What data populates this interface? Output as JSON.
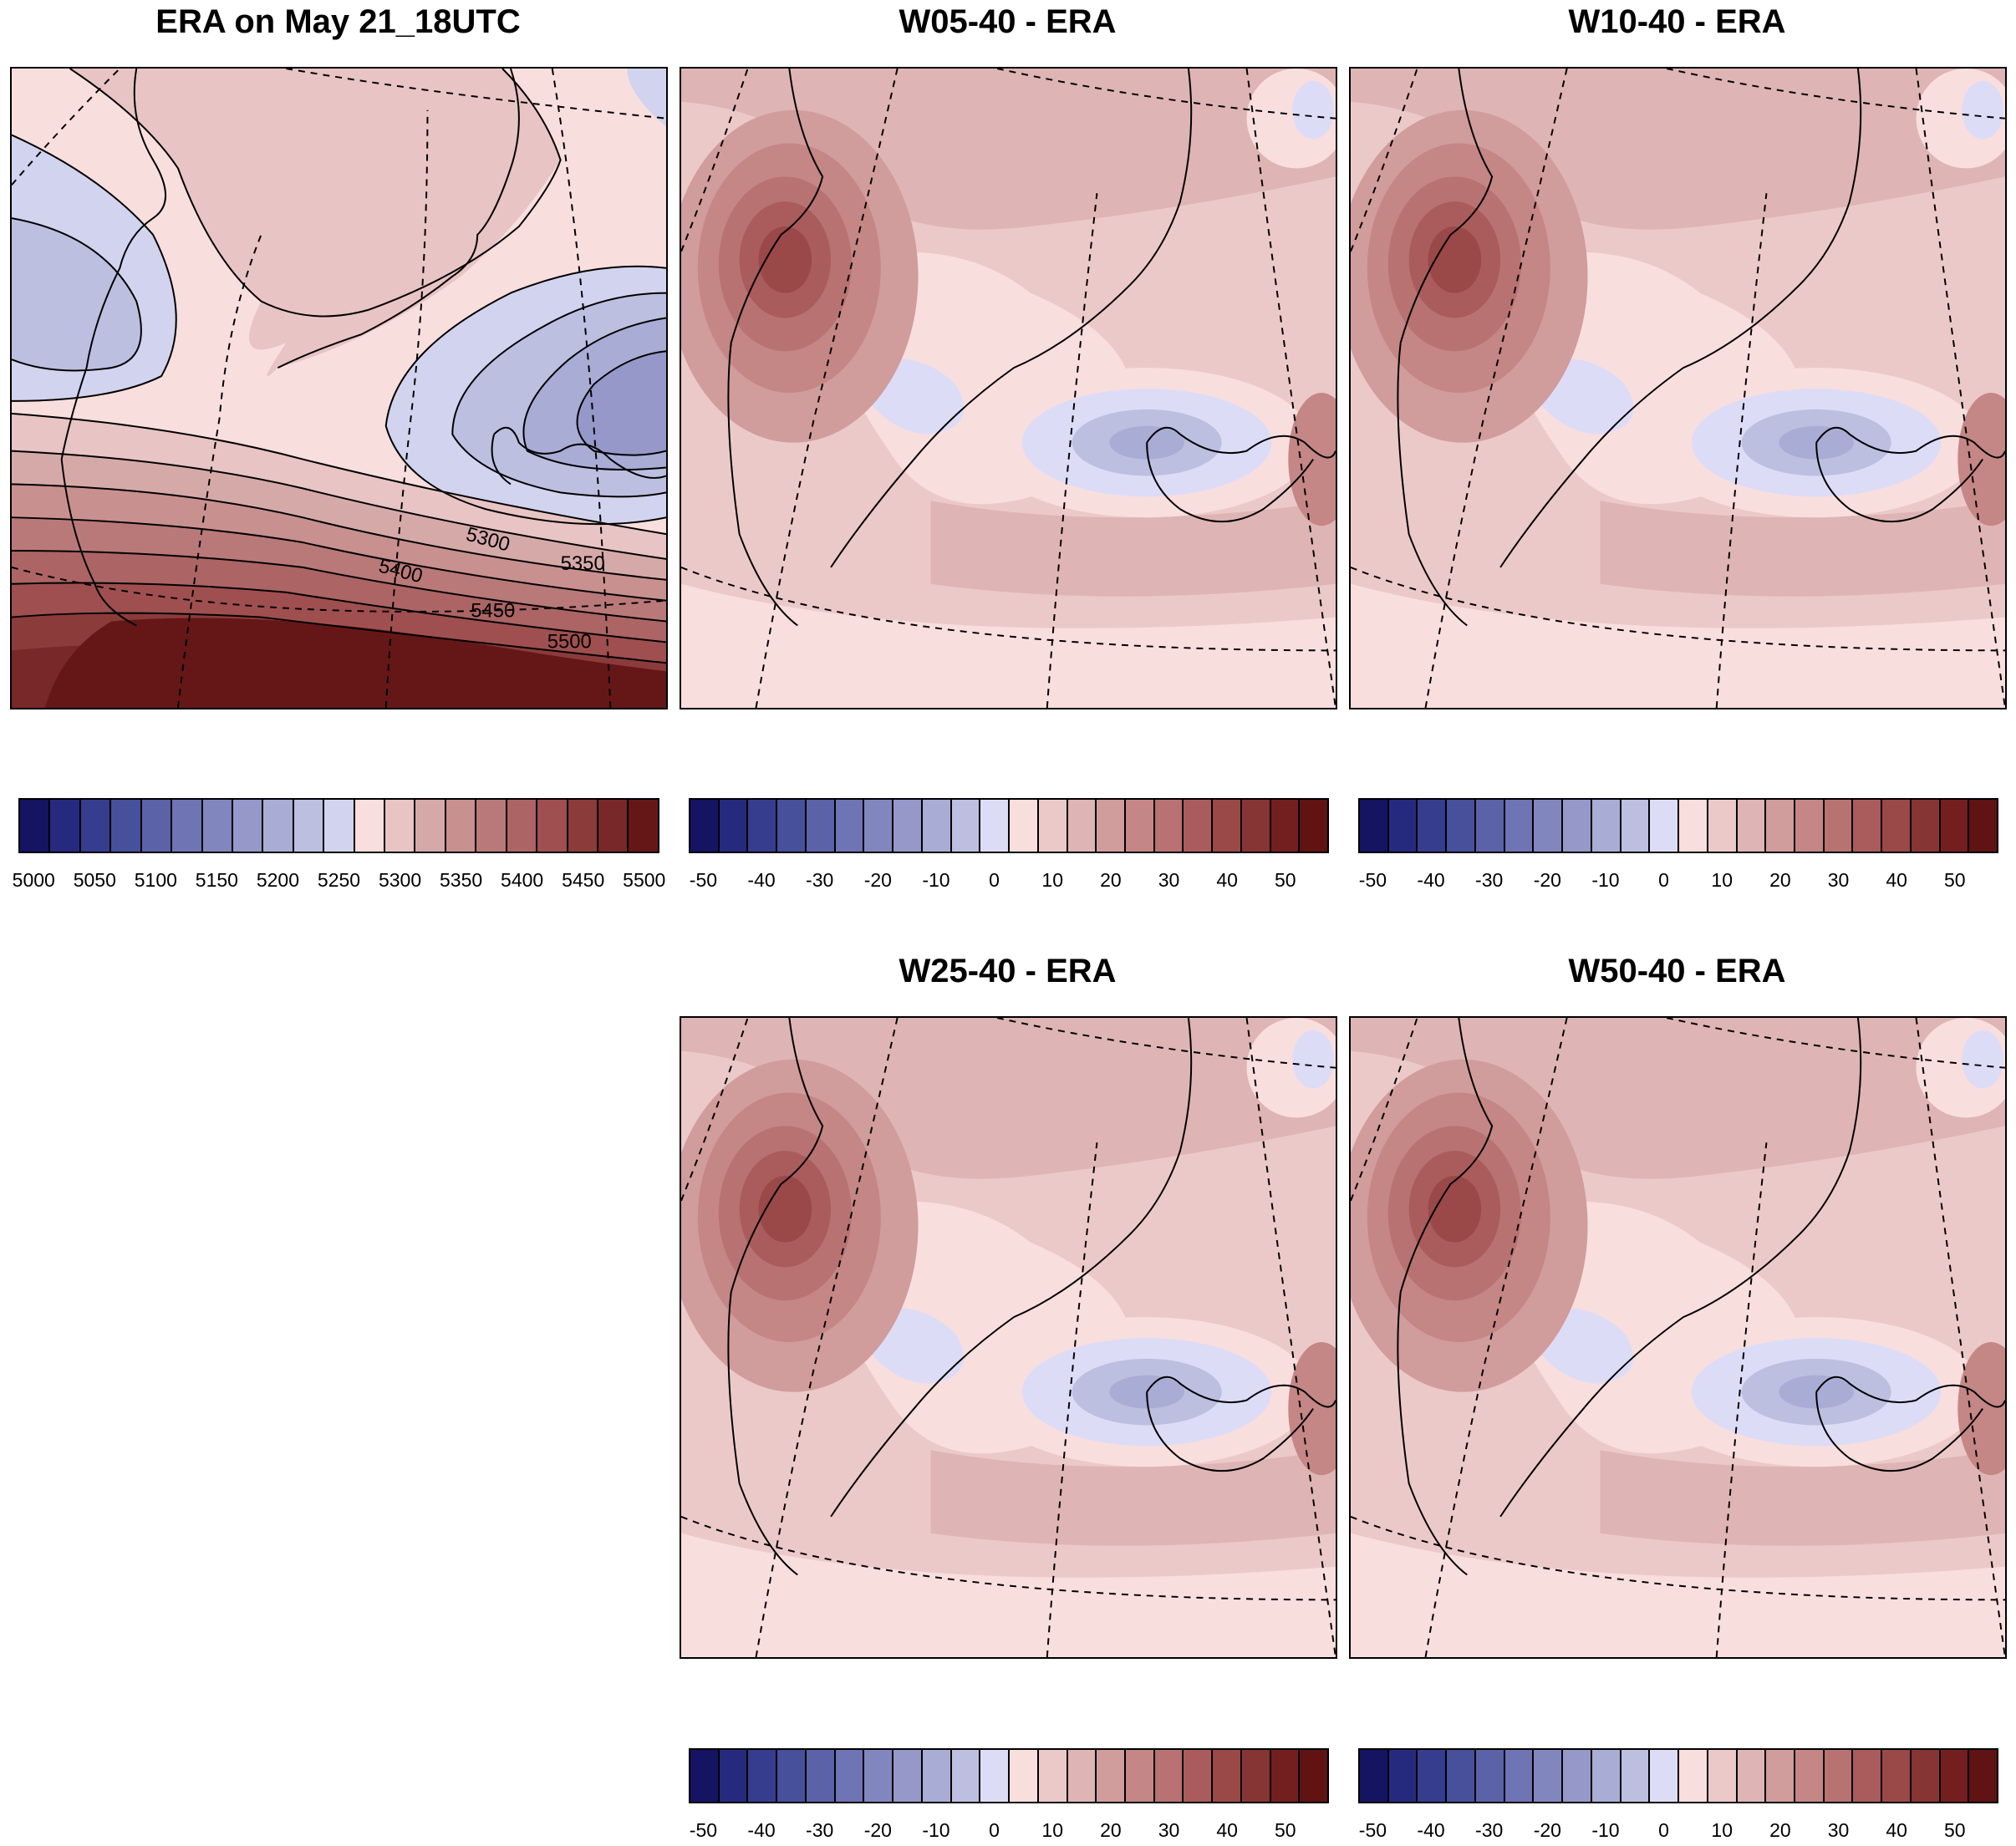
{
  "panels": [
    {
      "id": "era",
      "title": "ERA on May 21_18UTC",
      "field": "absolute"
    },
    {
      "id": "w05",
      "title": "W05-40 - ERA",
      "field": "diff"
    },
    {
      "id": "w10",
      "title": "W10-40 - ERA",
      "field": "diff"
    },
    {
      "id": "w25",
      "title": "W25-40 - ERA",
      "field": "diff"
    },
    {
      "id": "w50",
      "title": "W50-40 - ERA",
      "field": "diff"
    }
  ],
  "contour_labels": [
    "5300",
    "5350",
    "5400",
    "5450",
    "5500"
  ],
  "colorbars": {
    "absolute": {
      "colors": [
        "#141463",
        "#262a7f",
        "#363d8e",
        "#47509a",
        "#5b62a8",
        "#6f74b5",
        "#8286bf",
        "#9598c9",
        "#a9acd4",
        "#bcbfdf",
        "#d2d3ee",
        "#f9dede",
        "#e8c4c4",
        "#d6a9a9",
        "#c99090",
        "#ba7979",
        "#ac6464",
        "#9f4f4f",
        "#8c3b3b",
        "#782828",
        "#651717"
      ],
      "tick_labels": [
        "5000",
        "5050",
        "5100",
        "5150",
        "5200",
        "5250",
        "5300",
        "5350",
        "5400",
        "5450",
        "5500"
      ]
    },
    "diff": {
      "colors": [
        "#141463",
        "#262a7f",
        "#363d8e",
        "#47509a",
        "#5b62a8",
        "#6f74b5",
        "#8286bf",
        "#9598c9",
        "#a9acd4",
        "#bcbfdf",
        "#dddcf7",
        "#f9dede",
        "#ecc9c9",
        "#dfb4b4",
        "#d19c9c",
        "#c58686",
        "#b87272",
        "#aa5c5c",
        "#9b4848",
        "#873434",
        "#741f1f",
        "#5f1313"
      ],
      "tick_labels": [
        "-50",
        "-40",
        "-30",
        "-20",
        "-10",
        "0",
        "10",
        "20",
        "30",
        "40",
        "50"
      ]
    }
  }
}
